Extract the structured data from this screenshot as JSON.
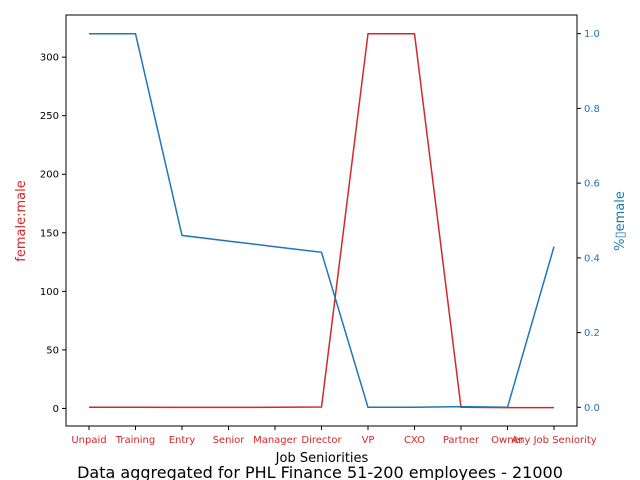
{
  "chart_data": {
    "type": "line",
    "xlabel": "Job Seniorities",
    "categories": [
      "Unpaid",
      "Training",
      "Entry",
      "Senior",
      "Manager",
      "Director",
      "VP",
      "CXO",
      "Partner",
      "Owner",
      "Any Job Seniority"
    ],
    "series": [
      {
        "name": "",
        "axis": "left",
        "color": "#d62728",
        "values": [
          1.0,
          1.0,
          0.85,
          0.85,
          1.0,
          1.2,
          320,
          320,
          1.0,
          0.75,
          0.75
        ]
      },
      {
        "name": "",
        "axis": "right",
        "color": "#1f77b4",
        "values": [
          1.0,
          1.0,
          0.46,
          0.445,
          0.43,
          0.415,
          0.0,
          0.0,
          0.002,
          0.0,
          0.43
        ]
      }
    ],
    "y_left": {
      "label": "female:male",
      "color": "#d62728",
      "lim": [
        -15,
        336
      ],
      "ticks": [
        0,
        50,
        100,
        150,
        200,
        250,
        300
      ]
    },
    "y_right": {
      "label": "%▯emale",
      "color": "#1f77b4",
      "lim": [
        -0.05,
        1.05
      ],
      "ticks": [
        "0.0",
        "0.2",
        "0.4",
        "0.6",
        "0.8",
        "1.0"
      ]
    },
    "x_tick_color": "#d62728",
    "grid": false
  },
  "caption": "Data aggregated for PHL Finance 51-200 employees - 21000"
}
